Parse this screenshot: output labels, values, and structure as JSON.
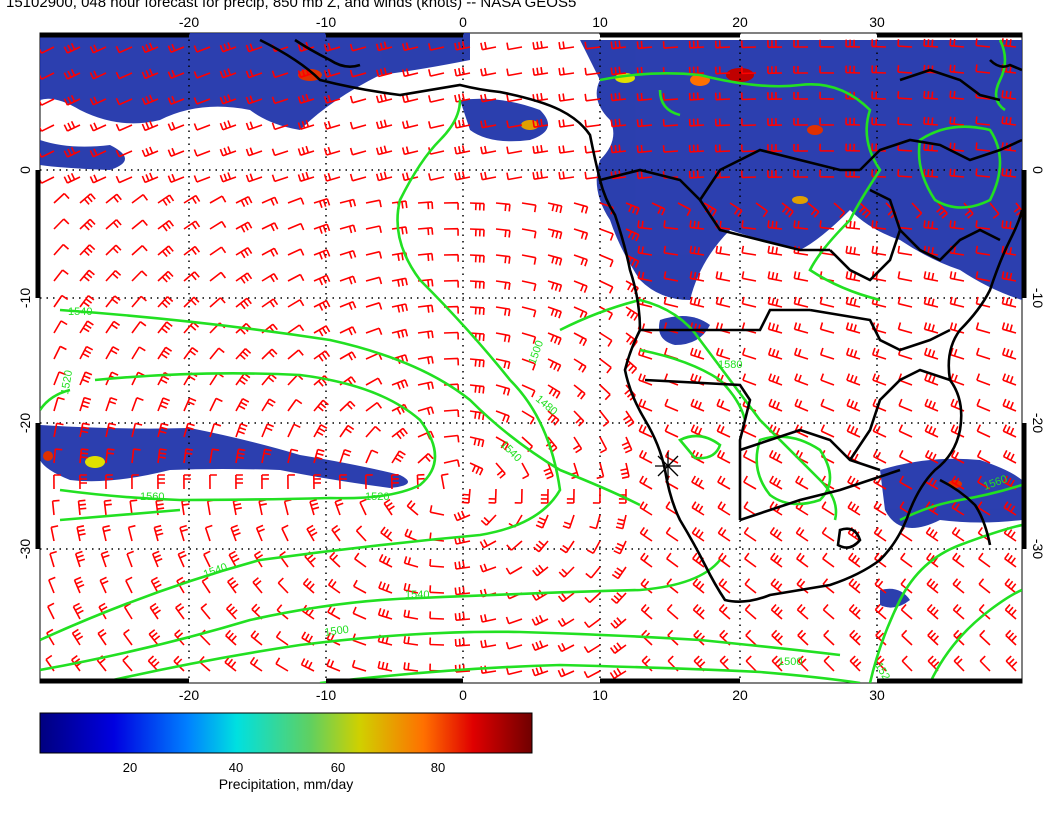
{
  "title": "15102900, 048 hour forecast for precip, 850 mb Z, and winds (knots) -- NASA GEOS5",
  "map": {
    "lon_range": [
      -30,
      40
    ],
    "lat_range": [
      -40,
      10
    ],
    "lon_ticks": [
      -20,
      -10,
      0,
      10,
      20,
      30
    ],
    "lat_ticks": [
      0,
      -10,
      -20,
      -30
    ],
    "grid": "dotted",
    "colors": {
      "wind_barbs": "#ff0000",
      "contours": "#22e022",
      "coastlines": "#000000",
      "precip_fill": "#1a2fa8"
    },
    "contour_labels": [
      "1540",
      "1520",
      "1560",
      "1500",
      "1480",
      "1540",
      "1520",
      "1540",
      "1500",
      "1540",
      "1580",
      "1500",
      "1520",
      "1560"
    ],
    "marker": "asterisk"
  },
  "colorbar": {
    "ticks": [
      "20",
      "40",
      "60",
      "80"
    ],
    "range": [
      0,
      100
    ],
    "caption": "Precipitation, mm/day"
  }
}
